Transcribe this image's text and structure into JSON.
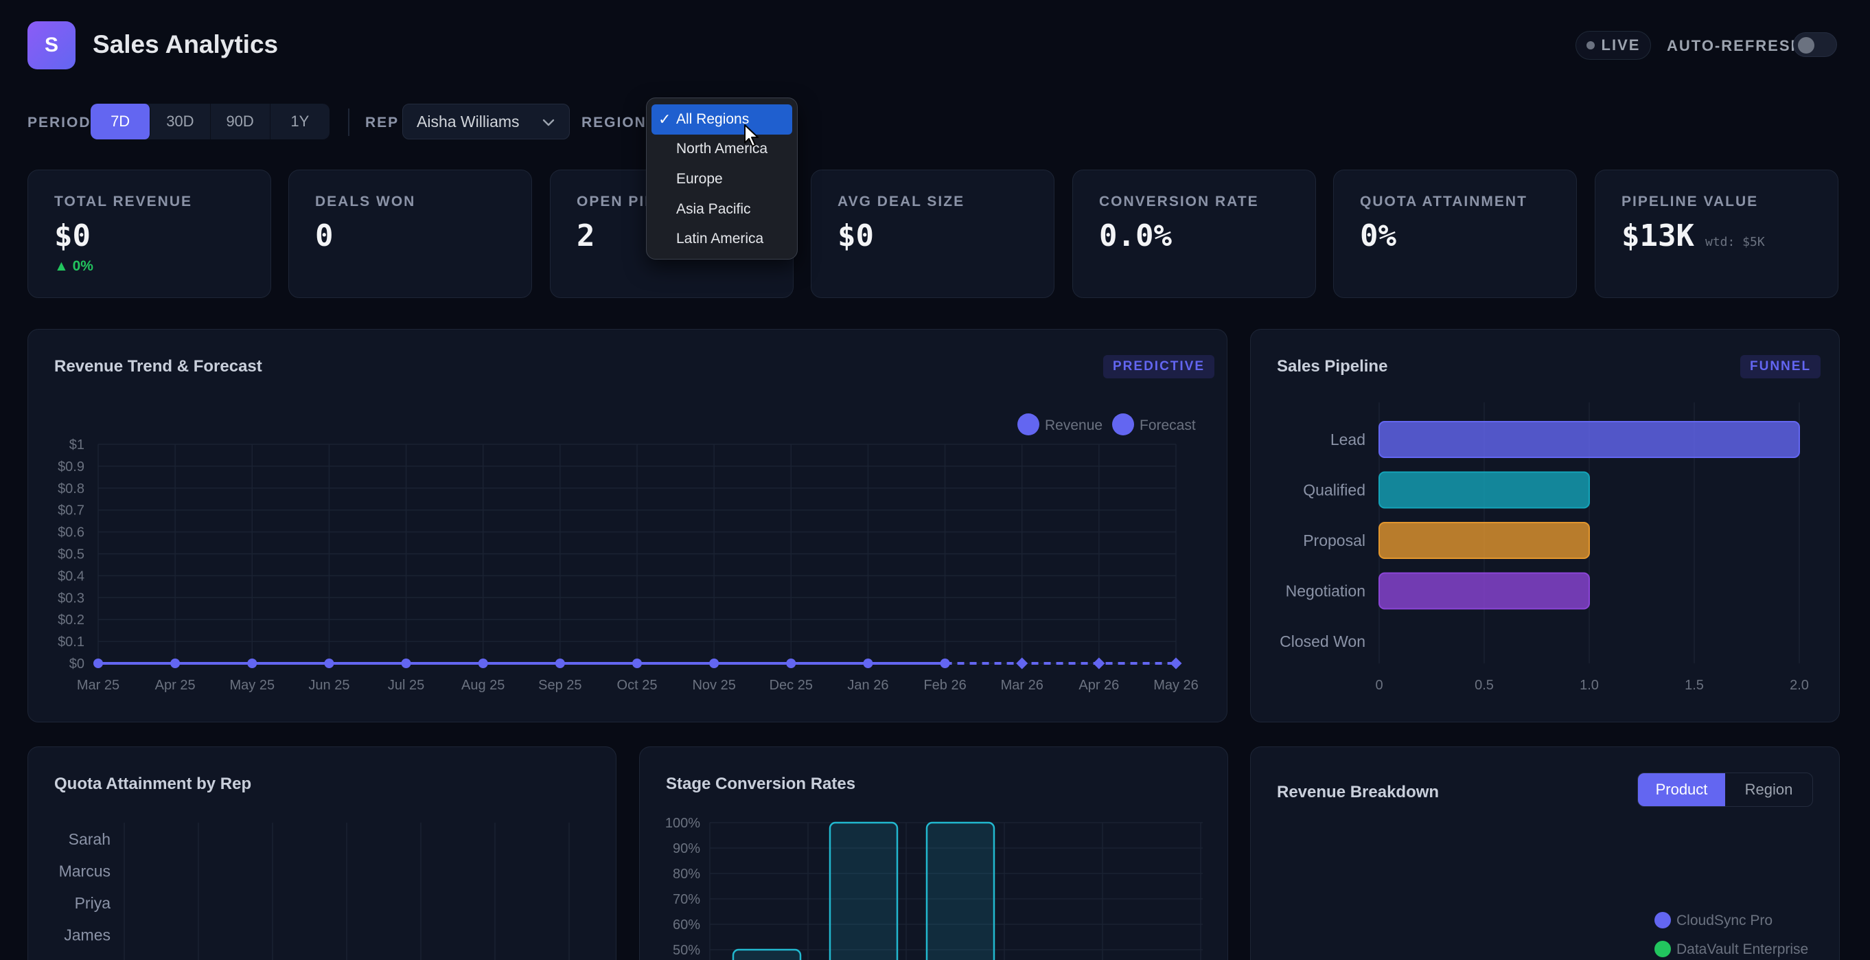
{
  "app": {
    "logo_letter": "S",
    "title": "Sales Analytics"
  },
  "status": {
    "live_label": "LIVE",
    "autorefresh_label": "AUTO-REFRESH",
    "autorefresh_on": false
  },
  "filters": {
    "period_label": "PERIOD",
    "periods": [
      "7D",
      "30D",
      "90D",
      "1Y"
    ],
    "period_selected": "7D",
    "rep_label": "REP",
    "rep_value": "Aisha Williams",
    "region_label": "REGION",
    "region_options": [
      "All Regions",
      "North America",
      "Europe",
      "Asia Pacific",
      "Latin America"
    ],
    "region_selected": "All Regions"
  },
  "kpis": [
    {
      "label": "TOTAL REVENUE",
      "value": "$0",
      "delta": "▲ 0%",
      "sub": ""
    },
    {
      "label": "DEALS WON",
      "value": "0",
      "delta": "",
      "sub": ""
    },
    {
      "label": "OPEN PIPELINE",
      "value": "2",
      "delta": "",
      "sub": ""
    },
    {
      "label": "AVG DEAL SIZE",
      "value": "$0",
      "delta": "",
      "sub": ""
    },
    {
      "label": "CONVERSION RATE",
      "value": "0.0%",
      "delta": "",
      "sub": ""
    },
    {
      "label": "QUOTA ATTAINMENT",
      "value": "0%",
      "delta": "",
      "sub": ""
    },
    {
      "label": "PIPELINE VALUE",
      "value": "$13K",
      "delta": "",
      "sub": "wtd: $5K"
    }
  ],
  "revenue_panel": {
    "title": "Revenue Trend & Forecast",
    "badge": "PREDICTIVE"
  },
  "pipeline_panel": {
    "title": "Sales Pipeline",
    "badge": "FUNNEL"
  },
  "quota_panel": {
    "title": "Quota Attainment by Rep"
  },
  "conversion_panel": {
    "title": "Stage Conversion Rates"
  },
  "breakdown_panel": {
    "title": "Revenue Breakdown",
    "tabs": [
      "Product",
      "Region"
    ],
    "tab_selected": "Product",
    "legend": [
      {
        "name": "CloudSync Pro",
        "color": "#6366f1"
      },
      {
        "name": "DataVault Enterprise",
        "color": "#22c55e"
      }
    ]
  },
  "chart_data": [
    {
      "type": "line",
      "title": "Revenue Trend & Forecast",
      "x": [
        "Mar 25",
        "Apr 25",
        "May 25",
        "Jun 25",
        "Jul 25",
        "Aug 25",
        "Sep 25",
        "Oct 25",
        "Nov 25",
        "Dec 25",
        "Jan 26",
        "Feb 26",
        "Mar 26",
        "Apr 26",
        "May 26"
      ],
      "yticks": [
        "$0",
        "$0.1",
        "$0.2",
        "$0.3",
        "$0.4",
        "$0.5",
        "$0.6",
        "$0.7",
        "$0.8",
        "$0.9",
        "$1"
      ],
      "ylim": [
        0,
        1
      ],
      "series": [
        {
          "name": "Revenue",
          "values": [
            0,
            0,
            0,
            0,
            0,
            0,
            0,
            0,
            0,
            0,
            0,
            0,
            null,
            null,
            null
          ],
          "color": "#6366f1",
          "style": "solid"
        },
        {
          "name": "Forecast",
          "values": [
            null,
            null,
            null,
            null,
            null,
            null,
            null,
            null,
            null,
            null,
            null,
            0,
            0,
            0,
            0
          ],
          "color": "#6366f1",
          "style": "dashed"
        }
      ],
      "legend": "top-right",
      "grid": true
    },
    {
      "type": "bar",
      "orientation": "horizontal",
      "title": "Sales Pipeline",
      "categories": [
        "Lead",
        "Qualified",
        "Proposal",
        "Negotiation",
        "Closed Won"
      ],
      "values": [
        2,
        1,
        1,
        1,
        0
      ],
      "colors": [
        "#6366f1",
        "#14a3b8",
        "#e2962e",
        "#8b45d6",
        "#6366f1"
      ],
      "xticks": [
        "0",
        "0.5",
        "1.0",
        "1.5",
        "2.0"
      ],
      "xlim": [
        0,
        2
      ],
      "grid": true
    },
    {
      "type": "bar",
      "orientation": "horizontal",
      "title": "Quota Attainment by Rep",
      "categories": [
        "Sarah",
        "Marcus",
        "Priya",
        "James"
      ],
      "values": [
        0,
        0,
        0,
        0
      ],
      "grid": true
    },
    {
      "type": "bar",
      "title": "Stage Conversion Rates",
      "yticks": [
        "50%",
        "60%",
        "70%",
        "80%",
        "90%",
        "100%"
      ],
      "values": [
        50,
        100,
        100
      ],
      "color": "#22b8cf",
      "grid": true
    }
  ]
}
